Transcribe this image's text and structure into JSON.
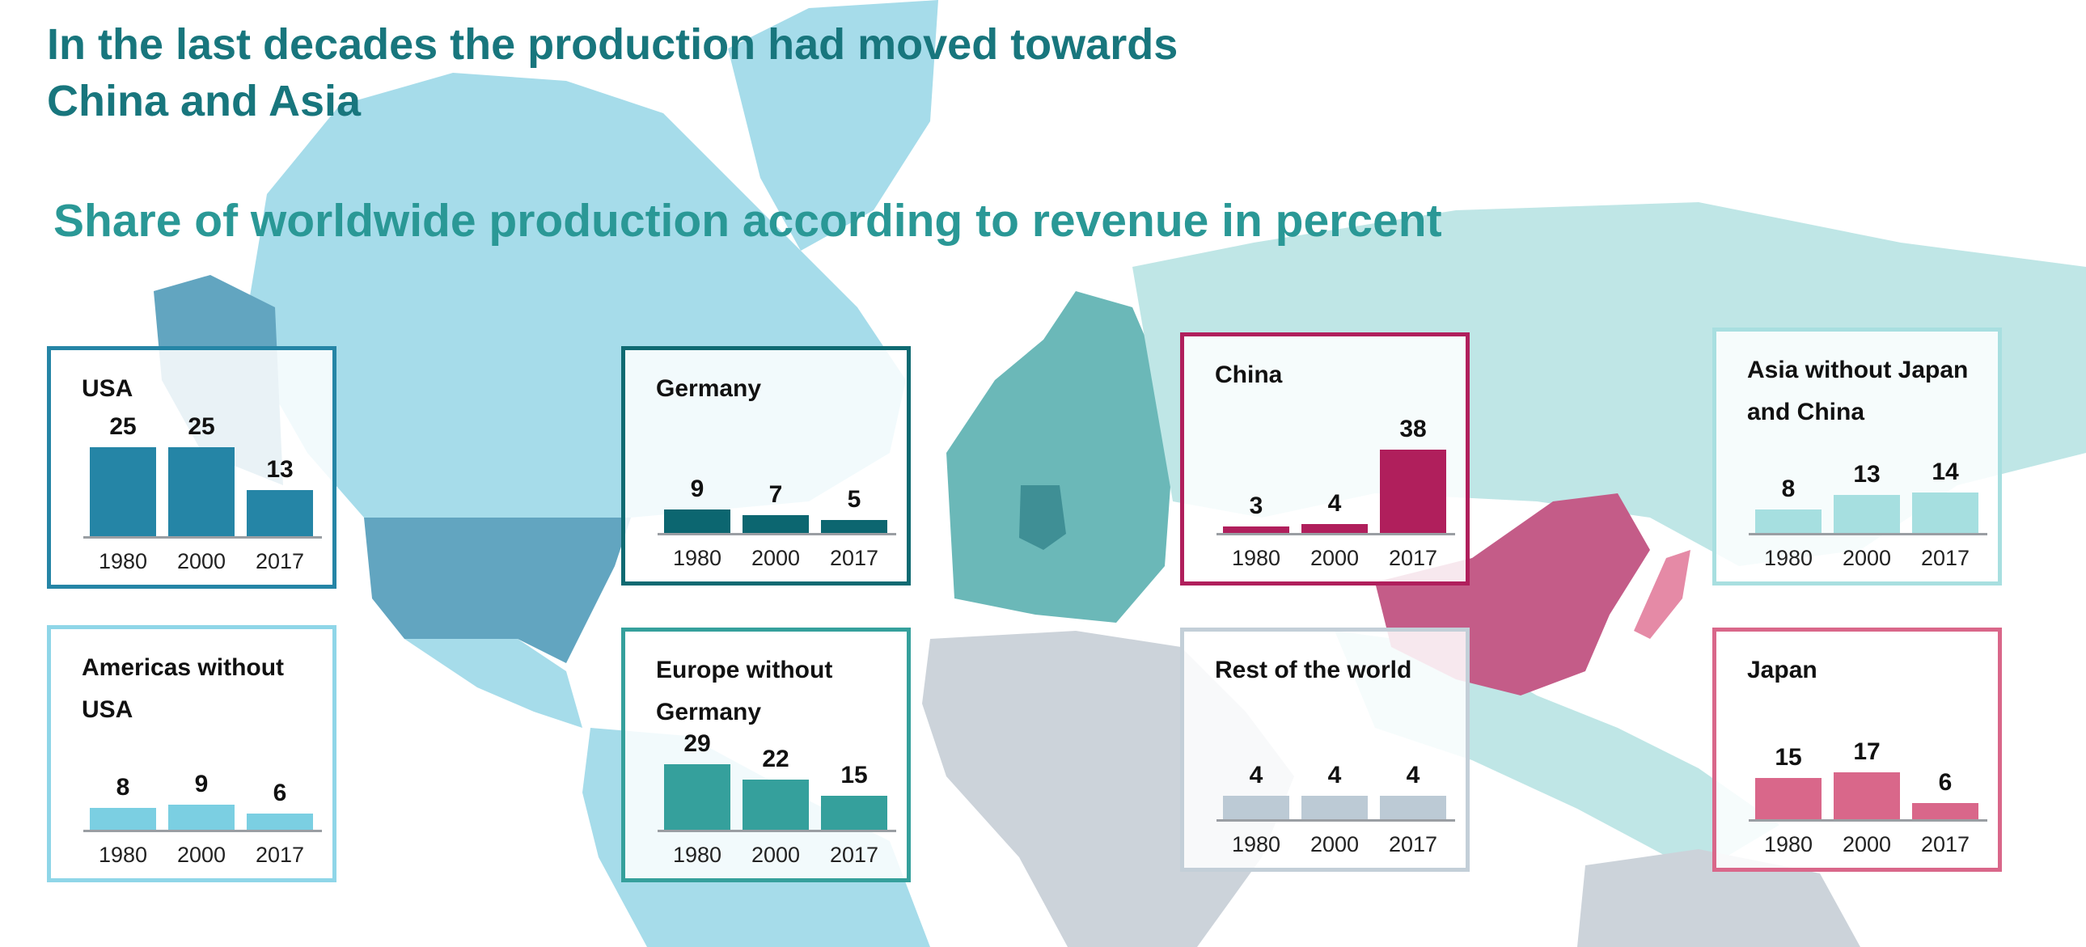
{
  "title": {
    "line1": "In the last decades the production had moved towards",
    "line2": "China and Asia"
  },
  "subtitle": "Share of worldwide production according to revenue in percent",
  "chart_data": [
    {
      "type": "bar",
      "title": "USA",
      "categories": [
        "1980",
        "2000",
        "2017"
      ],
      "values": [
        25,
        25,
        13
      ],
      "color": "#2585a6",
      "border": "#2585a6"
    },
    {
      "type": "bar",
      "title": "Americas without USA",
      "categories": [
        "1980",
        "2000",
        "2017"
      ],
      "values": [
        8,
        9,
        6
      ],
      "color": "#7bcfe2",
      "border": "#8fd6e8"
    },
    {
      "type": "bar",
      "title": "Germany",
      "categories": [
        "1980",
        "2000",
        "2017"
      ],
      "values": [
        9,
        7,
        5
      ],
      "color": "#0c6670",
      "border": "#0f6a72"
    },
    {
      "type": "bar",
      "title": "Europe without Germany",
      "categories": [
        "1980",
        "2000",
        "2017"
      ],
      "values": [
        29,
        22,
        15
      ],
      "color": "#35a09c",
      "border": "#35a09c"
    },
    {
      "type": "bar",
      "title": "China",
      "categories": [
        "1980",
        "2000",
        "2017"
      ],
      "values": [
        3,
        4,
        38
      ],
      "color": "#b01f5c",
      "border": "#b01f5c"
    },
    {
      "type": "bar",
      "title": "Rest of the world",
      "categories": [
        "1980",
        "2000",
        "2017"
      ],
      "values": [
        4,
        4,
        4
      ],
      "color": "#bccad5",
      "border": "#c3cfd8"
    },
    {
      "type": "bar",
      "title": "Asia without Japan and China",
      "categories": [
        "1980",
        "2000",
        "2017"
      ],
      "values": [
        8,
        13,
        14
      ],
      "color": "#a6dfe0",
      "border": "#a8dfe0"
    },
    {
      "type": "bar",
      "title": "Japan",
      "categories": [
        "1980",
        "2000",
        "2017"
      ],
      "values": [
        15,
        17,
        6
      ],
      "color": "#d9678a",
      "border": "#d9678a"
    }
  ],
  "map_colors": {
    "americas": "#a6dcea",
    "usa": "#62a5c0",
    "europe": "#6bb8b8",
    "germany": "#3f8f95",
    "asia": "#bfe6e6",
    "china": "#c45c88",
    "japan": "#e58aa6",
    "rest": "#ccd3da"
  }
}
